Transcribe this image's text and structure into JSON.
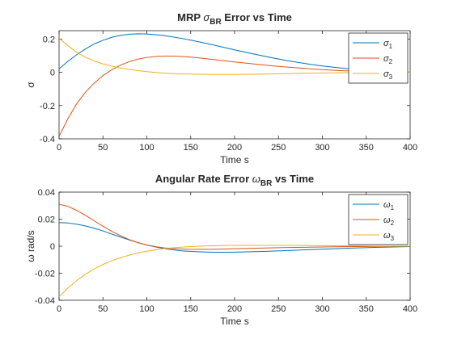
{
  "colors": {
    "series1": "#0072BD",
    "series2": "#D95319",
    "series3": "#EDB120",
    "axis": "#262626",
    "background": "#ffffff"
  },
  "chart_data": [
    {
      "type": "line",
      "title": {
        "prefix": "MRP ",
        "symbol": "σ",
        "subscript": "BR",
        "suffix": " Error vs Time"
      },
      "xlabel": "Time s",
      "ylabel": "σ",
      "xlim": [
        0,
        400
      ],
      "ylim": [
        -0.4,
        0.25
      ],
      "xticks": [
        0,
        50,
        100,
        150,
        200,
        250,
        300,
        350,
        400
      ],
      "xtick_labels": [
        "0",
        "50",
        "100",
        "150",
        "200",
        "250",
        "300",
        "350",
        "400"
      ],
      "yticks": [
        -0.4,
        -0.2,
        0,
        0.2
      ],
      "ytick_labels": [
        "-0.4",
        "-0.2",
        "0",
        "0.2"
      ],
      "grid": false,
      "legend_position": "top-right",
      "x": [
        0,
        10,
        20,
        30,
        40,
        50,
        60,
        70,
        80,
        90,
        100,
        110,
        120,
        130,
        140,
        150,
        160,
        170,
        180,
        190,
        200,
        220,
        240,
        260,
        280,
        300,
        320,
        340,
        360,
        380,
        400
      ],
      "series": [
        {
          "name": {
            "symbol": "σ",
            "subscript": "1"
          },
          "color": "#0072BD",
          "values": [
            0.02,
            0.065,
            0.105,
            0.14,
            0.17,
            0.192,
            0.21,
            0.222,
            0.229,
            0.231,
            0.23,
            0.226,
            0.22,
            0.212,
            0.203,
            0.193,
            0.182,
            0.171,
            0.159,
            0.147,
            0.135,
            0.112,
            0.09,
            0.07,
            0.053,
            0.038,
            0.026,
            0.016,
            0.009,
            0.004,
            0.001
          ]
        },
        {
          "name": {
            "symbol": "σ",
            "subscript": "2"
          },
          "color": "#D95319",
          "values": [
            -0.385,
            -0.28,
            -0.19,
            -0.12,
            -0.065,
            -0.02,
            0.015,
            0.043,
            0.064,
            0.079,
            0.089,
            0.095,
            0.097,
            0.097,
            0.095,
            0.091,
            0.086,
            0.08,
            0.074,
            0.068,
            0.062,
            0.051,
            0.04,
            0.031,
            0.023,
            0.016,
            0.01,
            0.006,
            0.003,
            0.001,
            0.0
          ]
        },
        {
          "name": {
            "symbol": "σ",
            "subscript": "3"
          },
          "color": "#EDB120",
          "values": [
            0.205,
            0.16,
            0.12,
            0.09,
            0.068,
            0.05,
            0.037,
            0.026,
            0.017,
            0.01,
            0.004,
            -0.001,
            -0.005,
            -0.008,
            -0.01,
            -0.011,
            -0.012,
            -0.013,
            -0.013,
            -0.013,
            -0.013,
            -0.012,
            -0.01,
            -0.008,
            -0.006,
            -0.004,
            -0.003,
            -0.002,
            -0.001,
            0.0,
            0.0
          ]
        }
      ]
    },
    {
      "type": "line",
      "title": {
        "prefix": "Angular Rate Error ",
        "symbol": "ω",
        "subscript": "BR",
        "suffix": " vs Time"
      },
      "xlabel": "Time s",
      "ylabel": "ω rad/s",
      "xlim": [
        0,
        400
      ],
      "ylim": [
        -0.04,
        0.04
      ],
      "xticks": [
        0,
        50,
        100,
        150,
        200,
        250,
        300,
        350,
        400
      ],
      "xtick_labels": [
        "0",
        "50",
        "100",
        "150",
        "200",
        "250",
        "300",
        "350",
        "400"
      ],
      "yticks": [
        -0.04,
        -0.02,
        0,
        0.02,
        0.04
      ],
      "ytick_labels": [
        "-0.04",
        "-0.02",
        "0",
        "0.02",
        "0.04"
      ],
      "grid": false,
      "legend_position": "top-right",
      "x": [
        0,
        10,
        20,
        30,
        40,
        50,
        60,
        70,
        80,
        90,
        100,
        110,
        120,
        130,
        140,
        150,
        160,
        170,
        180,
        190,
        200,
        220,
        240,
        260,
        280,
        300,
        320,
        340,
        360,
        380,
        400
      ],
      "series": [
        {
          "name": {
            "symbol": "ω",
            "subscript": "1"
          },
          "color": "#0072BD",
          "values": [
            0.0175,
            0.0172,
            0.0163,
            0.015,
            0.0133,
            0.0113,
            0.009,
            0.0068,
            0.0046,
            0.0026,
            0.0008,
            -0.0006,
            -0.0018,
            -0.0027,
            -0.0034,
            -0.0039,
            -0.0042,
            -0.0044,
            -0.0045,
            -0.0045,
            -0.0044,
            -0.0041,
            -0.0037,
            -0.0032,
            -0.0027,
            -0.0022,
            -0.0017,
            -0.0013,
            -0.0009,
            -0.0006,
            -0.0003
          ]
        },
        {
          "name": {
            "symbol": "ω",
            "subscript": "2"
          },
          "color": "#D95319",
          "values": [
            0.031,
            0.0295,
            0.0265,
            0.0228,
            0.0188,
            0.0148,
            0.011,
            0.0077,
            0.0049,
            0.0026,
            0.0009,
            -0.0004,
            -0.0013,
            -0.0018,
            -0.0021,
            -0.0023,
            -0.0023,
            -0.0023,
            -0.0022,
            -0.0021,
            -0.0019,
            -0.0016,
            -0.0013,
            -0.001,
            -0.0008,
            -0.0006,
            -0.0004,
            -0.0003,
            -0.0002,
            -0.0001,
            0.0
          ]
        },
        {
          "name": {
            "symbol": "ω",
            "subscript": "3"
          },
          "color": "#EDB120",
          "values": [
            -0.0375,
            -0.031,
            -0.0255,
            -0.0208,
            -0.0168,
            -0.0135,
            -0.0108,
            -0.0085,
            -0.0066,
            -0.005,
            -0.0037,
            -0.0027,
            -0.0018,
            -0.0012,
            -0.0007,
            -0.0003,
            0.0,
            0.0002,
            0.0004,
            0.0005,
            0.0006,
            0.0006,
            0.0006,
            0.0006,
            0.0005,
            0.0004,
            0.0003,
            0.0002,
            0.0001,
            0.0,
            0.0
          ]
        }
      ]
    }
  ]
}
